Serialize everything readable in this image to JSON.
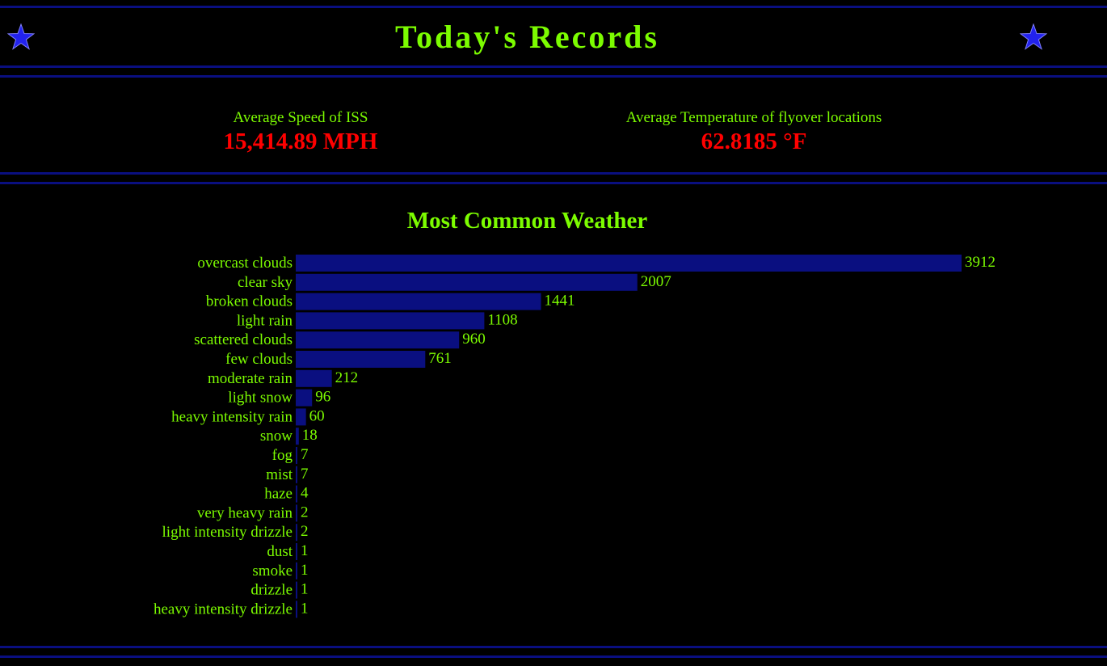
{
  "header": {
    "title": "Today's Records"
  },
  "stats": {
    "speed": {
      "label": "Average Speed of ISS",
      "value": "15,414.89 MPH"
    },
    "temperature": {
      "label": "Average Temperature of flyover locations",
      "value": "62.8185 °F"
    }
  },
  "colors": {
    "accent_text": "#7cfc00",
    "value_text": "#ff0000",
    "bar": "#0a0f80",
    "rule": "#0a0f80",
    "star": "#2222ee",
    "background": "#000000"
  },
  "icons": {
    "left": "star-icon",
    "right": "star-icon"
  },
  "chart_data": {
    "type": "bar",
    "orientation": "horizontal",
    "title": "Most Common Weather",
    "categories": [
      "overcast clouds",
      "clear sky",
      "broken clouds",
      "light rain",
      "scattered clouds",
      "few clouds",
      "moderate rain",
      "light snow",
      "heavy intensity rain",
      "snow",
      "fog",
      "mist",
      "haze",
      "very heavy rain",
      "light intensity drizzle",
      "dust",
      "smoke",
      "drizzle",
      "heavy intensity drizzle"
    ],
    "values": [
      3912,
      2007,
      1441,
      1108,
      960,
      761,
      212,
      96,
      60,
      18,
      7,
      7,
      4,
      2,
      2,
      1,
      1,
      1,
      1
    ],
    "data_labels": true,
    "grid": false,
    "legend": "none",
    "xlim": [
      0,
      3912
    ]
  }
}
